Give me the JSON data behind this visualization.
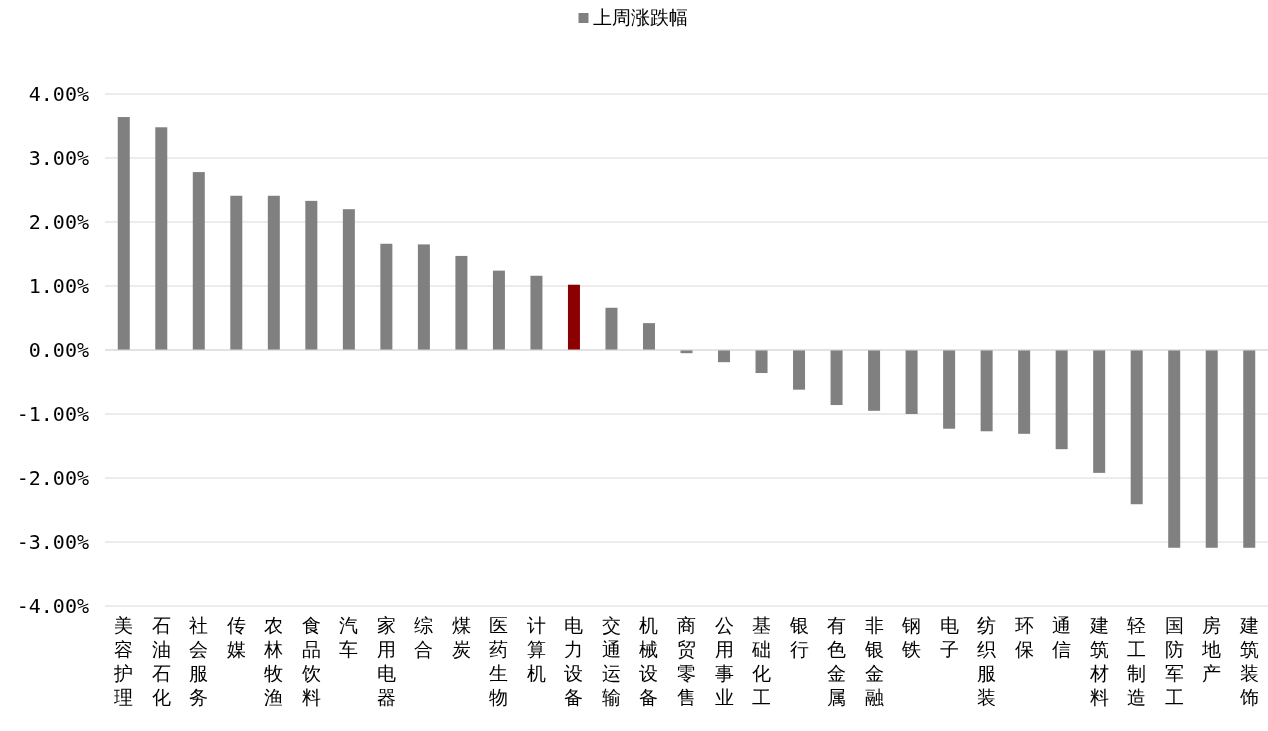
{
  "chart_data": {
    "type": "bar",
    "categories": [
      "美容护理",
      "石油石化",
      "社会服务",
      "传媒",
      "农林牧渔",
      "食品饮料",
      "汽车",
      "家用电器",
      "综合",
      "煤炭",
      "医药生物",
      "计算机",
      "电力设备",
      "交通运输",
      "机械设备",
      "商贸零售",
      "公用事业",
      "基础化工",
      "银行",
      "有色金属",
      "非银金融",
      "钢铁",
      "电子",
      "纺织服装",
      "环保",
      "通信",
      "建筑材料",
      "轻工制造",
      "国防军工",
      "房地产",
      "建筑装饰"
    ],
    "series": [
      {
        "name": "上周涨跌幅",
        "color": "#808080",
        "colors": [
          "#808080",
          "#808080",
          "#808080",
          "#808080",
          "#808080",
          "#808080",
          "#808080",
          "#808080",
          "#808080",
          "#808080",
          "#808080",
          "#808080",
          "#8b0000",
          "#808080",
          "#808080",
          "#808080",
          "#808080",
          "#808080",
          "#808080",
          "#808080",
          "#808080",
          "#808080",
          "#808080",
          "#808080",
          "#808080",
          "#808080",
          "#808080",
          "#808080",
          "#808080",
          "#808080",
          "#808080"
        ],
        "values": [
          3.64,
          3.48,
          2.78,
          2.41,
          2.41,
          2.33,
          2.2,
          1.66,
          1.65,
          1.47,
          1.24,
          1.16,
          1.02,
          0.66,
          0.42,
          -0.05,
          -0.19,
          -0.36,
          -0.62,
          -0.86,
          -0.95,
          -1.0,
          -1.23,
          -1.27,
          -1.31,
          -1.55,
          -1.92,
          -2.41,
          -3.09,
          -3.09,
          -3.09
        ]
      }
    ],
    "ylim": [
      -4,
      4
    ],
    "yticks": [
      {
        "value": -4,
        "label": "-4.00%"
      },
      {
        "value": -3,
        "label": "-3.00%"
      },
      {
        "value": -2,
        "label": "-2.00%"
      },
      {
        "value": -1,
        "label": "-1.00%"
      },
      {
        "value": 0,
        "label": "0.00%"
      },
      {
        "value": 1,
        "label": "1.00%"
      },
      {
        "value": 2,
        "label": "2.00%"
      },
      {
        "value": 3,
        "label": "3.00%"
      },
      {
        "value": 4,
        "label": "4.00%"
      }
    ],
    "grid": "y",
    "legend": "top"
  }
}
